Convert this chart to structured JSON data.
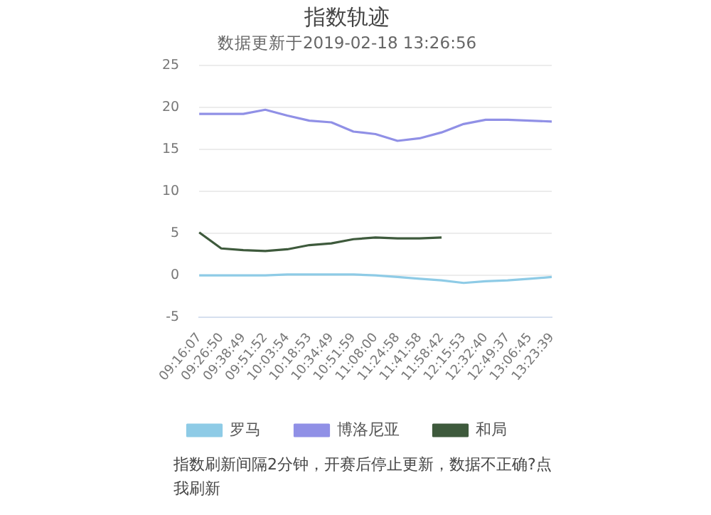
{
  "chart_data": {
    "type": "line",
    "title": "指数轨迹",
    "subtitle": "数据更新于2019-02-18 13:26:56",
    "categories": [
      "09:16:07",
      "09:26:50",
      "09:38:49",
      "09:51:52",
      "10:03:54",
      "10:18:53",
      "10:34:49",
      "10:51:59",
      "11:08:00",
      "11:24:58",
      "11:41:58",
      "11:58:42",
      "12:15:53",
      "12:32:40",
      "12:49:37",
      "13:06:45",
      "13:23:39"
    ],
    "series": [
      {
        "name": "罗马",
        "color": "#8ecbe6",
        "values": [
          0,
          0,
          0,
          0,
          0.1,
          0.1,
          0.1,
          0.1,
          0,
          -0.2,
          -0.4,
          -0.6,
          -0.9,
          -0.7,
          -0.6,
          -0.4,
          -0.2
        ]
      },
      {
        "name": "博洛尼亚",
        "color": "#9090e6",
        "values": [
          19.2,
          19.2,
          19.2,
          19.7,
          19.0,
          18.4,
          18.2,
          17.1,
          16.8,
          16.0,
          16.3,
          17.0,
          18.0,
          18.5,
          18.5,
          18.4,
          18.3
        ]
      },
      {
        "name": "和局",
        "color": "#3e5a3c",
        "values": [
          5.1,
          3.2,
          3.0,
          2.9,
          3.1,
          3.6,
          3.8,
          4.3,
          4.5,
          4.4,
          4.4,
          4.5,
          null,
          null,
          null,
          null,
          null
        ]
      }
    ],
    "ylim": [
      -5,
      25
    ],
    "yticks": [
      -5,
      0,
      5,
      10,
      15,
      20,
      25
    ],
    "grid": "y",
    "legend": "bottom",
    "marker": "none",
    "line_style": "solid",
    "annotations": [
      "指数刷新间隔2分钟，开赛后停止更新，数据不正确?点我刷新"
    ]
  }
}
